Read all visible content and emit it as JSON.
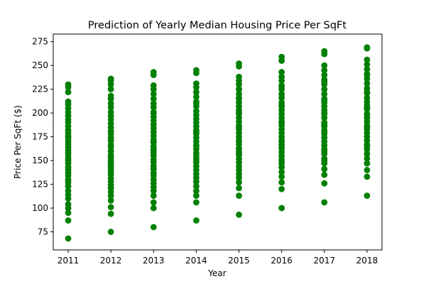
{
  "chart_data": {
    "type": "scatter",
    "title": "Prediction of Yearly Median Housing Price Per SqFt",
    "xlabel": "Year",
    "ylabel": "Price Per SqFt ($)",
    "xlim": [
      2010.65,
      2018.35
    ],
    "ylim": [
      56,
      283
    ],
    "x_ticks": [
      2011,
      2012,
      2013,
      2014,
      2015,
      2016,
      2017,
      2018
    ],
    "y_ticks": [
      75,
      100,
      125,
      150,
      175,
      200,
      225,
      250,
      275
    ],
    "grid": false,
    "marker_color": "#008000",
    "series": [
      {
        "x": [
          2011,
          2011,
          2011,
          2011,
          2011,
          2011,
          2011,
          2011,
          2011,
          2011,
          2011,
          2011,
          2011,
          2011,
          2011,
          2011,
          2011,
          2011,
          2011,
          2011,
          2011,
          2011,
          2011,
          2011,
          2011,
          2011,
          2011,
          2011,
          2011,
          2011,
          2011,
          2011,
          2011,
          2011,
          2011,
          2011,
          2011,
          2011,
          2011,
          2011,
          2012,
          2012,
          2012,
          2012,
          2012,
          2012,
          2012,
          2012,
          2012,
          2012,
          2012,
          2012,
          2012,
          2012,
          2012,
          2012,
          2012,
          2012,
          2012,
          2012,
          2012,
          2012,
          2012,
          2012,
          2012,
          2012,
          2012,
          2012,
          2012,
          2012,
          2012,
          2012,
          2012,
          2012,
          2012,
          2012,
          2012,
          2012,
          2012,
          2013,
          2013,
          2013,
          2013,
          2013,
          2013,
          2013,
          2013,
          2013,
          2013,
          2013,
          2013,
          2013,
          2013,
          2013,
          2013,
          2013,
          2013,
          2013,
          2013,
          2013,
          2013,
          2013,
          2013,
          2013,
          2013,
          2013,
          2013,
          2013,
          2013,
          2013,
          2013,
          2013,
          2013,
          2013,
          2013,
          2013,
          2013,
          2014,
          2014,
          2014,
          2014,
          2014,
          2014,
          2014,
          2014,
          2014,
          2014,
          2014,
          2014,
          2014,
          2014,
          2014,
          2014,
          2014,
          2014,
          2014,
          2014,
          2014,
          2014,
          2014,
          2014,
          2014,
          2014,
          2014,
          2014,
          2014,
          2014,
          2014,
          2014,
          2014,
          2014,
          2014,
          2014,
          2014,
          2015,
          2015,
          2015,
          2015,
          2015,
          2015,
          2015,
          2015,
          2015,
          2015,
          2015,
          2015,
          2015,
          2015,
          2015,
          2015,
          2015,
          2015,
          2015,
          2015,
          2015,
          2015,
          2015,
          2015,
          2015,
          2015,
          2015,
          2015,
          2015,
          2015,
          2015,
          2015,
          2015,
          2015,
          2015,
          2015,
          2015,
          2015,
          2015,
          2016,
          2016,
          2016,
          2016,
          2016,
          2016,
          2016,
          2016,
          2016,
          2016,
          2016,
          2016,
          2016,
          2016,
          2016,
          2016,
          2016,
          2016,
          2016,
          2016,
          2016,
          2016,
          2016,
          2016,
          2016,
          2016,
          2016,
          2016,
          2016,
          2016,
          2016,
          2016,
          2016,
          2016,
          2016,
          2016,
          2016,
          2016,
          2017,
          2017,
          2017,
          2017,
          2017,
          2017,
          2017,
          2017,
          2017,
          2017,
          2017,
          2017,
          2017,
          2017,
          2017,
          2017,
          2017,
          2017,
          2017,
          2017,
          2017,
          2017,
          2017,
          2017,
          2017,
          2017,
          2017,
          2017,
          2017,
          2017,
          2017,
          2017,
          2017,
          2017,
          2017,
          2017,
          2017,
          2018,
          2018,
          2018,
          2018,
          2018,
          2018,
          2018,
          2018,
          2018,
          2018,
          2018,
          2018,
          2018,
          2018,
          2018,
          2018,
          2018,
          2018,
          2018,
          2018,
          2018,
          2018,
          2018,
          2018,
          2018,
          2018,
          2018,
          2018,
          2018,
          2018,
          2018,
          2018,
          2018,
          2018,
          2018,
          2018
        ],
        "y": [
          68,
          87,
          95,
          100,
          104,
          110,
          114,
          118,
          123,
          127,
          130,
          134,
          137,
          140,
          143,
          147,
          150,
          152,
          155,
          158,
          161,
          164,
          167,
          170,
          173,
          176,
          179,
          182,
          186,
          190,
          193,
          197,
          201,
          205,
          209,
          212,
          222,
          227,
          230,
          175,
          75,
          94,
          101,
          108,
          113,
          117,
          121,
          124,
          128,
          131,
          135,
          138,
          141,
          144,
          147,
          150,
          153,
          156,
          160,
          164,
          167,
          171,
          174,
          178,
          181,
          185,
          189,
          193,
          197,
          201,
          206,
          210,
          215,
          218,
          225,
          230,
          234,
          236,
          143,
          80,
          100,
          106,
          113,
          118,
          122,
          126,
          130,
          134,
          137,
          141,
          144,
          148,
          151,
          155,
          158,
          162,
          165,
          169,
          172,
          176,
          180,
          184,
          188,
          192,
          196,
          201,
          206,
          210,
          215,
          220,
          225,
          229,
          240,
          243,
          160,
          170,
          200,
          87,
          106,
          113,
          118,
          123,
          128,
          132,
          136,
          140,
          144,
          148,
          152,
          155,
          158,
          162,
          166,
          170,
          174,
          178,
          182,
          186,
          190,
          194,
          198,
          202,
          207,
          212,
          217,
          222,
          227,
          231,
          242,
          245,
          150,
          165,
          180,
          210,
          93,
          113,
          121,
          127,
          132,
          136,
          140,
          144,
          148,
          152,
          156,
          160,
          163,
          167,
          171,
          175,
          179,
          183,
          187,
          191,
          195,
          199,
          203,
          207,
          211,
          216,
          220,
          225,
          230,
          234,
          238,
          249,
          252,
          170,
          185,
          200,
          215,
          158,
          225,
          100,
          120,
          127,
          133,
          138,
          143,
          147,
          151,
          155,
          159,
          163,
          167,
          171,
          175,
          179,
          183,
          187,
          191,
          195,
          199,
          203,
          207,
          211,
          216,
          220,
          225,
          229,
          234,
          238,
          243,
          255,
          259,
          150,
          170,
          190,
          208,
          228,
          166,
          106,
          126,
          135,
          141,
          147,
          152,
          157,
          162,
          166,
          170,
          174,
          178,
          182,
          186,
          190,
          195,
          199,
          203,
          207,
          211,
          215,
          220,
          225,
          230,
          235,
          240,
          245,
          250,
          262,
          265,
          160,
          180,
          200,
          213,
          233,
          150,
          188,
          113,
          133,
          140,
          147,
          152,
          157,
          162,
          167,
          171,
          175,
          179,
          183,
          187,
          191,
          195,
          199,
          204,
          208,
          212,
          216,
          221,
          226,
          231,
          236,
          241,
          246,
          251,
          256,
          268,
          269,
          165,
          185,
          205,
          222,
          240,
          198
        ]
      }
    ]
  }
}
